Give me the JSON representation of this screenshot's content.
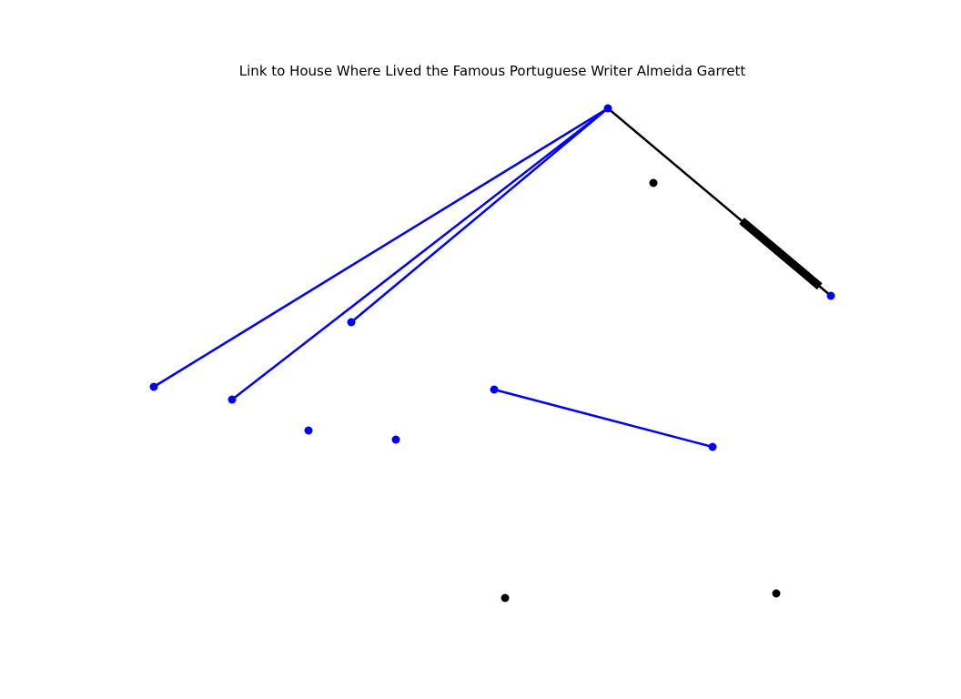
{
  "title": "Link to House Where Lived the Famous Portuguese Writer Almeida Garrett",
  "colors": {
    "blue": "#0000ff",
    "black": "#000000",
    "background": "#ffffff"
  },
  "nodes": [
    {
      "id": "n1",
      "color": "blue"
    },
    {
      "id": "n2",
      "color": "black"
    },
    {
      "id": "n3",
      "color": "blue"
    },
    {
      "id": "n4",
      "color": "blue"
    },
    {
      "id": "n5",
      "color": "blue"
    },
    {
      "id": "n6",
      "color": "blue"
    },
    {
      "id": "n7",
      "color": "blue"
    },
    {
      "id": "n8",
      "color": "blue"
    },
    {
      "id": "n9",
      "color": "blue"
    },
    {
      "id": "n10",
      "color": "blue"
    },
    {
      "id": "n11",
      "color": "black"
    },
    {
      "id": "n12",
      "color": "black"
    }
  ],
  "edges": [
    {
      "from": "n1",
      "to": "n5",
      "color": "blue"
    },
    {
      "from": "n1",
      "to": "n6",
      "color": "blue"
    },
    {
      "from": "n1",
      "to": "n4",
      "color": "blue"
    },
    {
      "from": "n8",
      "to": "n10",
      "color": "blue"
    },
    {
      "from": "n1",
      "to": "n3",
      "color": "black",
      "arrow": true
    }
  ]
}
